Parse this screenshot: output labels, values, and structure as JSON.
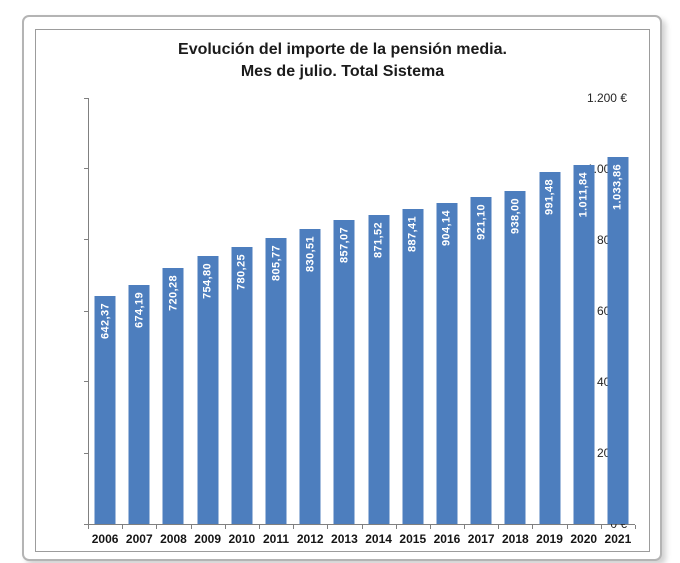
{
  "chart_data": {
    "type": "bar",
    "title": "Evolución del importe de la pensión media.",
    "subtitle": "Mes de julio. Total Sistema",
    "categories": [
      "2006",
      "2007",
      "2008",
      "2009",
      "2010",
      "2011",
      "2012",
      "2013",
      "2014",
      "2015",
      "2016",
      "2017",
      "2018",
      "2019",
      "2020",
      "2021"
    ],
    "values": [
      642.37,
      674.19,
      720.28,
      754.8,
      780.25,
      805.77,
      830.51,
      857.07,
      871.52,
      887.41,
      904.14,
      921.1,
      938.0,
      991.48,
      1011.84,
      1033.86
    ],
    "value_labels": [
      "642,37",
      "674,19",
      "720,28",
      "754,80",
      "780,25",
      "805,77",
      "830,51",
      "857,07",
      "871,52",
      "887,41",
      "904,14",
      "921,10",
      "938,00",
      "991,48",
      "1.011,84",
      "1.033,86"
    ],
    "y_ticks": [
      "1.200 €",
      "1.000 €",
      "800 €",
      "600 €",
      "400 €",
      "200 €",
      "0 €"
    ],
    "ylim": [
      0,
      1200
    ],
    "y_tick_step": 200,
    "xlabel": "",
    "ylabel": "",
    "grid": false,
    "legend": "none",
    "bar_color": "#4d7ebe",
    "bar_label_color": "#ffffff",
    "axis_color": "#808080"
  }
}
